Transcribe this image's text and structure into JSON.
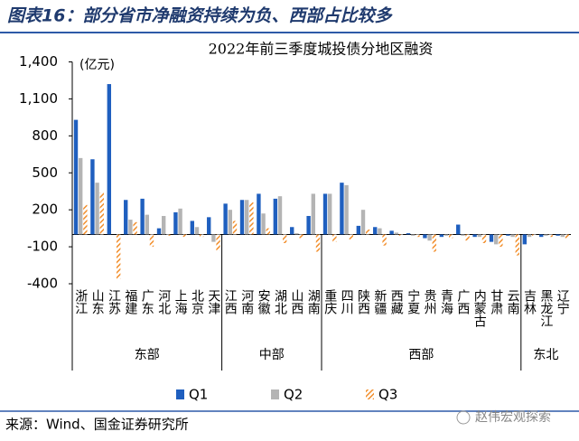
{
  "header": {
    "title": "图表16：部分省市净融资持续为负、西部占比较多"
  },
  "chart_data": {
    "type": "bar",
    "title": "2022年前三季度城投债分地区融资",
    "y_label": "(亿元)",
    "categories": [
      "浙江",
      "山东",
      "江苏",
      "福建",
      "广东",
      "河北",
      "上海",
      "北京",
      "天津",
      "江西",
      "河南",
      "安徽",
      "湖北",
      "山西",
      "湖南",
      "重庆",
      "四川",
      "陕西",
      "新疆",
      "西藏",
      "宁夏",
      "贵州",
      "青海",
      "广西",
      "内蒙古",
      "甘肃",
      "云南",
      "吉林",
      "黑龙江",
      "辽宁"
    ],
    "category_groups": [
      "东部",
      "东部",
      "东部",
      "东部",
      "东部",
      "东部",
      "东部",
      "东部",
      "东部",
      "中部",
      "中部",
      "中部",
      "中部",
      "中部",
      "中部",
      "西部",
      "西部",
      "西部",
      "西部",
      "西部",
      "西部",
      "西部",
      "西部",
      "西部",
      "西部",
      "西部",
      "西部",
      "东北",
      "东北",
      "东北"
    ],
    "series": [
      {
        "name": "Q1",
        "color": "#1f5fbf",
        "pattern": "solid",
        "values": [
          930,
          610,
          1220,
          280,
          290,
          50,
          180,
          110,
          140,
          250,
          280,
          330,
          290,
          60,
          150,
          330,
          420,
          70,
          60,
          30,
          10,
          -30,
          -20,
          80,
          -20,
          -60,
          -10,
          -80,
          -20,
          -10
        ]
      },
      {
        "name": "Q2",
        "color": "#b4b4b4",
        "pattern": "solid",
        "values": [
          620,
          420,
          0,
          120,
          160,
          150,
          210,
          60,
          -60,
          200,
          280,
          170,
          310,
          10,
          330,
          330,
          400,
          200,
          50,
          15,
          -10,
          -50,
          -10,
          -10,
          -20,
          -80,
          -20,
          -20,
          -10,
          -20
        ]
      },
      {
        "name": "Q3",
        "color": "#f28e2b",
        "pattern": "hatch",
        "values": [
          240,
          340,
          -360,
          100,
          -100,
          -10,
          -20,
          -20,
          -130,
          110,
          260,
          50,
          -70,
          -30,
          -140,
          -60,
          -40,
          40,
          -90,
          -10,
          -20,
          -140,
          -30,
          -50,
          -70,
          -100,
          -170,
          -10,
          -20,
          -30
        ]
      }
    ],
    "ylim": [
      -400,
      1400
    ],
    "yticks": [
      -400,
      -100,
      200,
      500,
      800,
      {
        "value": 1100,
        "label": "1,100"
      },
      {
        "value": 1400,
        "label": "1,400"
      }
    ],
    "grid": false
  },
  "source": "来源：Wind、国金证券研究所",
  "watermark": "赵伟宏观探索"
}
